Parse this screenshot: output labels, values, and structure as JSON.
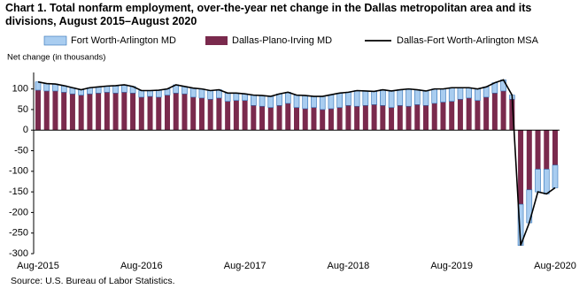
{
  "chart_data": {
    "type": "stacked-bar-line",
    "title": "Chart 1. Total nonfarm employment, over-the-year net change in the Dallas metropolitan area and its divisions, August 2015–August 2020",
    "y_axis_label": "Net change (in thousands)",
    "source": "Source: U.S. Bureau of Labor Statistics.",
    "legend": "top",
    "categories": [
      "Aug-2015",
      null,
      null,
      null,
      null,
      null,
      null,
      null,
      null,
      null,
      null,
      null,
      "Aug-2016",
      null,
      null,
      null,
      null,
      null,
      null,
      null,
      null,
      null,
      null,
      null,
      "Aug-2017",
      null,
      null,
      null,
      null,
      null,
      null,
      null,
      null,
      null,
      null,
      null,
      "Aug-2018",
      null,
      null,
      null,
      null,
      null,
      null,
      null,
      null,
      null,
      null,
      null,
      "Aug-2019",
      null,
      null,
      null,
      null,
      null,
      null,
      null,
      null,
      null,
      null,
      null,
      "Aug-2020"
    ],
    "series": [
      {
        "name": "Fort Worth-Arlington MD",
        "type": "bar",
        "color": "#a9cdf0",
        "values": [
          20,
          18,
          17,
          16,
          15,
          13,
          15,
          15,
          15,
          18,
          18,
          16,
          16,
          14,
          17,
          15,
          20,
          18,
          22,
          22,
          21,
          20,
          20,
          18,
          16,
          25,
          26,
          27,
          28,
          27,
          30,
          32,
          27,
          32,
          34,
          35,
          32,
          38,
          35,
          32,
          38,
          40,
          38,
          42,
          36,
          35,
          35,
          32,
          33,
          28,
          25,
          28,
          25,
          25,
          27,
          10,
          -100,
          -80,
          -55,
          -60,
          -55
        ]
      },
      {
        "name": "Dallas-Plano-Irving MD",
        "type": "bar",
        "color": "#7a2a4d",
        "values": [
          97,
          95,
          95,
          92,
          88,
          85,
          88,
          90,
          92,
          90,
          92,
          90,
          80,
          82,
          80,
          85,
          90,
          88,
          80,
          78,
          75,
          78,
          70,
          72,
          72,
          60,
          58,
          55,
          60,
          65,
          55,
          52,
          55,
          50,
          52,
          55,
          60,
          58,
          60,
          62,
          60,
          55,
          60,
          58,
          62,
          60,
          65,
          68,
          70,
          75,
          78,
          72,
          80,
          90,
          95,
          75,
          -180,
          -145,
          -95,
          -95,
          -85
        ]
      },
      {
        "name": "Dallas-Fort Worth-Arlington MSA",
        "type": "line",
        "color": "#000000",
        "values": [
          117,
          113,
          112,
          108,
          103,
          98,
          103,
          105,
          107,
          108,
          110,
          106,
          96,
          96,
          97,
          100,
          110,
          106,
          102,
          100,
          96,
          98,
          90,
          90,
          88,
          85,
          84,
          82,
          88,
          92,
          85,
          84,
          82,
          82,
          86,
          90,
          92,
          96,
          95,
          94,
          98,
          95,
          98,
          100,
          98,
          95,
          100,
          100,
          103,
          103,
          103,
          100,
          105,
          115,
          122,
          85,
          -280,
          -225,
          -150,
          -155,
          -140
        ]
      }
    ],
    "ylim": [
      -300,
      140
    ],
    "yticks": [
      100,
      50,
      0,
      -50,
      -100,
      -150,
      -200,
      -250,
      -300
    ]
  }
}
